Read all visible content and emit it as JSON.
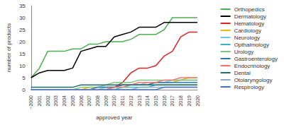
{
  "chart_data": {
    "type": "line",
    "x_label": "approved year",
    "y_label": "number of products",
    "categories": [
      "~2000",
      "2001",
      "2002",
      "2003",
      "2004",
      "2005",
      "2006",
      "2007",
      "2008",
      "2009",
      "2010",
      "2011",
      "2012",
      "2013",
      "2014",
      "2015",
      "2016",
      "2017",
      "2018",
      "2019",
      "2020"
    ],
    "ylim": [
      0,
      35
    ],
    "yticks": [
      0,
      5,
      10,
      15,
      20,
      25,
      30,
      35
    ],
    "grid": false,
    "legend": "right",
    "series": [
      {
        "name": "Orthopedics",
        "color": "#4caf50",
        "values": [
          5,
          9,
          16,
          16,
          16,
          17,
          17,
          19,
          19,
          20,
          20,
          20,
          21,
          23,
          23,
          23,
          25,
          30,
          30,
          30,
          30
        ]
      },
      {
        "name": "Dermatology",
        "color": "#000000",
        "values": [
          5,
          7,
          8,
          8,
          8,
          9,
          16,
          17,
          18,
          18,
          22,
          23,
          24,
          26,
          26,
          26,
          28,
          28,
          28,
          28,
          28
        ]
      },
      {
        "name": "Hematology",
        "color": "#e02020",
        "values": [
          0,
          0,
          0,
          0,
          0,
          0,
          0,
          0,
          0,
          0,
          1,
          3,
          7,
          9,
          9,
          10,
          14,
          16,
          22,
          24,
          24
        ]
      },
      {
        "name": "Cardiology",
        "color": "#f0b400",
        "values": [
          0,
          0,
          0,
          0,
          0,
          0,
          0,
          1,
          1,
          1,
          1,
          1,
          2,
          2,
          2,
          3,
          3,
          3,
          4,
          5,
          5
        ]
      },
      {
        "name": "Neurology",
        "color": "#6cc6f0",
        "values": [
          0,
          0,
          0,
          0,
          0,
          0,
          0,
          0,
          0,
          1,
          1,
          2,
          2,
          2,
          3,
          3,
          3,
          4,
          4,
          4,
          4
        ]
      },
      {
        "name": "Opthalmology",
        "color": "#33b5c8",
        "values": [
          0,
          0,
          0,
          0,
          0,
          0,
          0,
          0,
          0,
          0,
          0,
          1,
          1,
          1,
          1,
          2,
          2,
          2,
          2,
          2,
          2
        ]
      },
      {
        "name": "Urology",
        "color": "#7cc47c",
        "values": [
          0,
          0,
          0,
          0,
          0,
          0,
          1,
          1,
          1,
          2,
          3,
          3,
          3,
          4,
          4,
          4,
          4,
          4,
          4,
          4,
          4
        ]
      },
      {
        "name": "Gastroenterology",
        "color": "#2e75b6",
        "values": [
          0,
          0,
          0,
          0,
          0,
          0,
          0,
          0,
          1,
          1,
          1,
          2,
          2,
          2,
          2,
          3,
          3,
          3,
          3,
          3,
          3
        ]
      },
      {
        "name": "Endocrinology",
        "color": "#ff7070",
        "values": [
          0,
          0,
          0,
          0,
          0,
          0,
          0,
          0,
          0,
          0,
          1,
          1,
          2,
          3,
          3,
          3,
          4,
          4,
          5,
          5,
          5
        ]
      },
      {
        "name": "Dental",
        "color": "#1f6f6f",
        "values": [
          1,
          1,
          1,
          1,
          1,
          1,
          2,
          2,
          2,
          2,
          2,
          2,
          2,
          2,
          2,
          2,
          2,
          2,
          2,
          2,
          2
        ]
      },
      {
        "name": "Otolaryngology",
        "color": "#8fa8c8",
        "values": [
          0,
          0,
          0,
          0,
          0,
          0,
          0,
          0,
          0,
          0,
          0,
          0,
          0,
          1,
          1,
          1,
          1,
          1,
          1,
          1,
          1
        ]
      },
      {
        "name": "Respirology",
        "color": "#4472c4",
        "values": [
          0,
          0,
          0,
          0,
          0,
          0,
          0,
          0,
          0,
          0,
          0,
          0,
          0,
          0,
          0,
          0,
          1,
          1,
          1,
          1,
          1
        ]
      }
    ]
  }
}
